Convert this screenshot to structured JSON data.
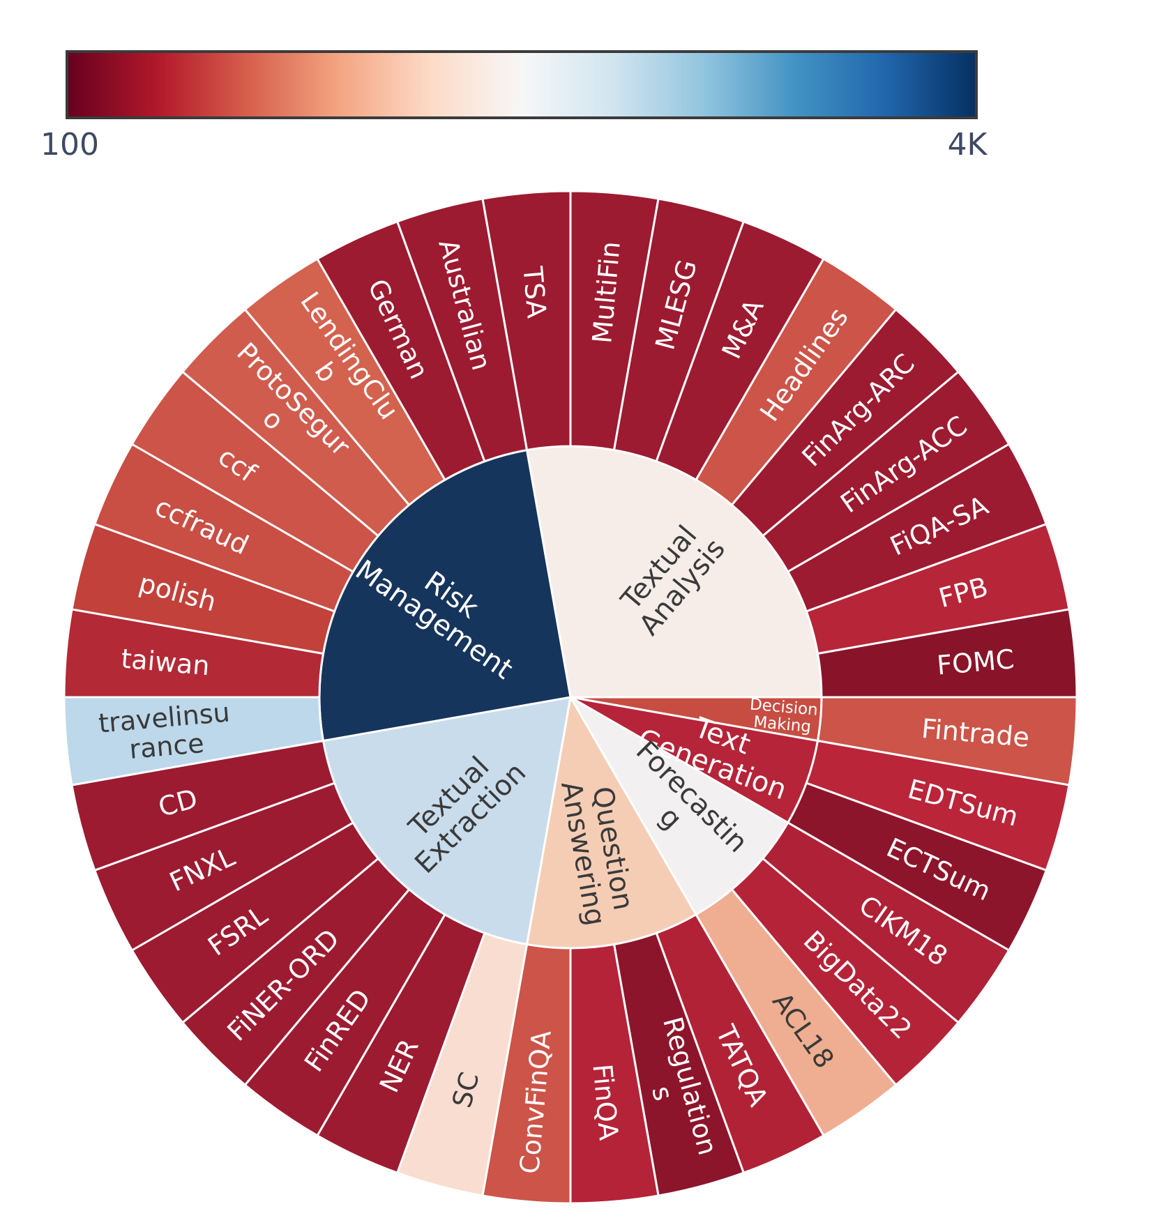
{
  "figure": {
    "background": "#ffffff"
  },
  "chart_data": {
    "type": "sunburst",
    "title": "",
    "legend_position": "top-colorbar",
    "colorbar": {
      "min_label": "100",
      "max_label": "4K",
      "label_color": "#3d4a63",
      "border_color": "#3b3b3b",
      "gradient_stops": [
        {
          "offset": 0.0,
          "color": "#67001f"
        },
        {
          "offset": 0.1,
          "color": "#b2182b"
        },
        {
          "offset": 0.2,
          "color": "#d6604d"
        },
        {
          "offset": 0.3,
          "color": "#f4a582"
        },
        {
          "offset": 0.4,
          "color": "#fddbc7"
        },
        {
          "offset": 0.5,
          "color": "#f7f7f7"
        },
        {
          "offset": 0.6,
          "color": "#d1e5f0"
        },
        {
          "offset": 0.7,
          "color": "#92c5de"
        },
        {
          "offset": 0.8,
          "color": "#4393c3"
        },
        {
          "offset": 0.9,
          "color": "#2166ac"
        },
        {
          "offset": 1.0,
          "color": "#053061"
        }
      ]
    },
    "start_angle_deg": -10,
    "leaf_angle_deg": 10,
    "stroke_color": "#ffffff",
    "categories": [
      {
        "name": "textual-analysis",
        "lines": [
          "Textual",
          "Analysis"
        ],
        "color": "#f6ede8",
        "text_color": "#3a3a3a",
        "children": [
          {
            "name": "tsa",
            "lines": [
              "TSA"
            ],
            "color": "#9c1b31",
            "text_color": "#ffffff"
          },
          {
            "name": "multifin",
            "lines": [
              "MultiFin"
            ],
            "color": "#9c1b31",
            "text_color": "#ffffff"
          },
          {
            "name": "mlesg",
            "lines": [
              "MLESG"
            ],
            "color": "#9c1b31",
            "text_color": "#ffffff"
          },
          {
            "name": "m-and-a",
            "lines": [
              "M&A"
            ],
            "color": "#9c1b31",
            "text_color": "#ffffff"
          },
          {
            "name": "headlines",
            "lines": [
              "Headlines"
            ],
            "color": "#cc5448",
            "text_color": "#ffffff"
          },
          {
            "name": "finarg-arc",
            "lines": [
              "FinArg-ARC"
            ],
            "color": "#9c1b31",
            "text_color": "#ffffff"
          },
          {
            "name": "finarg-acc",
            "lines": [
              "FinArg-ACC"
            ],
            "color": "#9c1b31",
            "text_color": "#ffffff"
          },
          {
            "name": "fiqa-sa",
            "lines": [
              "FiQA-SA"
            ],
            "color": "#9c1b31",
            "text_color": "#ffffff"
          },
          {
            "name": "fpb",
            "lines": [
              "FPB"
            ],
            "color": "#b72539",
            "text_color": "#ffffff"
          },
          {
            "name": "fomc",
            "lines": [
              "FOMC"
            ],
            "color": "#891429",
            "text_color": "#ffffff"
          }
        ]
      },
      {
        "name": "decision-making",
        "lines": [
          "Decision",
          "Making"
        ],
        "color": "#c74d42",
        "text_color": "#ffffff",
        "children": [
          {
            "name": "fintrade",
            "lines": [
              "Fintrade"
            ],
            "color": "#cc5448",
            "text_color": "#ffffff"
          }
        ]
      },
      {
        "name": "text-generation",
        "lines": [
          "Text",
          "Generation"
        ],
        "color": "#b52438",
        "text_color": "#ffffff",
        "children": [
          {
            "name": "edtsum",
            "lines": [
              "EDTSum"
            ],
            "color": "#ba2539",
            "text_color": "#ffffff"
          },
          {
            "name": "ectsum",
            "lines": [
              "ECTSum"
            ],
            "color": "#8d152b",
            "text_color": "#ffffff"
          }
        ]
      },
      {
        "name": "forecasting",
        "lines": [
          "Forecastin",
          "g"
        ],
        "color": "#f2f0f1",
        "text_color": "#3a3a3a",
        "children": [
          {
            "name": "cikm18",
            "lines": [
              "CIKM18"
            ],
            "color": "#ae2136",
            "text_color": "#ffffff"
          },
          {
            "name": "bigdata22",
            "lines": [
              "BigData22"
            ],
            "color": "#b52338",
            "text_color": "#ffffff"
          },
          {
            "name": "acl18",
            "lines": [
              "ACL18"
            ],
            "color": "#efae91",
            "text_color": "#3a3a3a"
          }
        ]
      },
      {
        "name": "question-answering",
        "lines": [
          "Question",
          "Answering"
        ],
        "color": "#f5cdb5",
        "text_color": "#3a3a3a",
        "children": [
          {
            "name": "tatqa",
            "lines": [
              "TATQA"
            ],
            "color": "#b22236",
            "text_color": "#ffffff"
          },
          {
            "name": "regulations",
            "lines": [
              "Regulation",
              "s"
            ],
            "color": "#8d152b",
            "text_color": "#ffffff"
          },
          {
            "name": "finqa",
            "lines": [
              "FinQA"
            ],
            "color": "#b52338",
            "text_color": "#ffffff"
          },
          {
            "name": "convfinqa",
            "lines": [
              "ConvFinQA"
            ],
            "color": "#cc5448",
            "text_color": "#ffffff"
          }
        ]
      },
      {
        "name": "textual-extraction",
        "lines": [
          "Textual",
          "Extraction"
        ],
        "color": "#c9dcec",
        "text_color": "#3a3a3a",
        "children": [
          {
            "name": "sc",
            "lines": [
              "SC"
            ],
            "color": "#f9ddd1",
            "text_color": "#3a3a3a"
          },
          {
            "name": "ner",
            "lines": [
              "NER"
            ],
            "color": "#9c1b31",
            "text_color": "#ffffff"
          },
          {
            "name": "finred",
            "lines": [
              "FinRED"
            ],
            "color": "#9c1b31",
            "text_color": "#ffffff"
          },
          {
            "name": "finer-ord",
            "lines": [
              "FiNER-ORD"
            ],
            "color": "#9c1b31",
            "text_color": "#ffffff"
          },
          {
            "name": "fsrl",
            "lines": [
              "FSRL"
            ],
            "color": "#9c1b31",
            "text_color": "#ffffff"
          },
          {
            "name": "fnxl",
            "lines": [
              "FNXL"
            ],
            "color": "#9c1b31",
            "text_color": "#ffffff"
          },
          {
            "name": "cd",
            "lines": [
              "CD"
            ],
            "color": "#9c1b31",
            "text_color": "#ffffff"
          }
        ]
      },
      {
        "name": "risk-management",
        "lines": [
          "Risk",
          "Management"
        ],
        "color": "#16355c",
        "text_color": "#ffffff",
        "children": [
          {
            "name": "travelinsurance",
            "lines": [
              "travelinsu",
              "rance"
            ],
            "color": "#bdd8ea",
            "text_color": "#3a3a3a"
          },
          {
            "name": "taiwan",
            "lines": [
              "taiwan"
            ],
            "color": "#b42936",
            "text_color": "#ffffff"
          },
          {
            "name": "polish",
            "lines": [
              "polish"
            ],
            "color": "#c2413b",
            "text_color": "#ffffff"
          },
          {
            "name": "ccfraud",
            "lines": [
              "ccfraud"
            ],
            "color": "#c94e44",
            "text_color": "#ffffff"
          },
          {
            "name": "ccf",
            "lines": [
              "ccf"
            ],
            "color": "#cc5448",
            "text_color": "#ffffff"
          },
          {
            "name": "protoseguro",
            "lines": [
              "ProtoSegur",
              "o"
            ],
            "color": "#d05c4e",
            "text_color": "#ffffff"
          },
          {
            "name": "lendingclub",
            "lines": [
              "LendingClu",
              "b"
            ],
            "color": "#d3624f",
            "text_color": "#ffffff"
          },
          {
            "name": "german",
            "lines": [
              "German"
            ],
            "color": "#9c1b31",
            "text_color": "#ffffff"
          },
          {
            "name": "australian",
            "lines": [
              "Australian"
            ],
            "color": "#9c1b31",
            "text_color": "#ffffff"
          }
        ]
      }
    ]
  }
}
